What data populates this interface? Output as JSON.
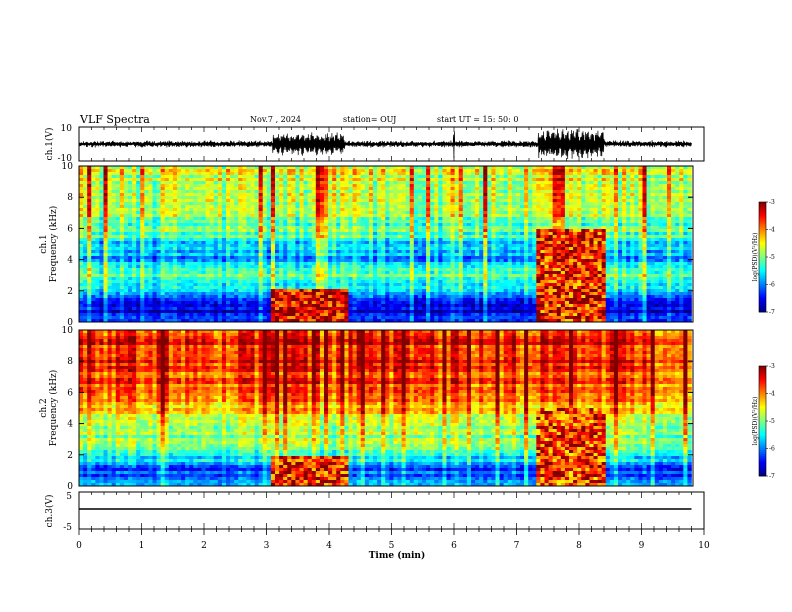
{
  "header": {
    "title": "VLF Spectra",
    "date": "Nov.7 , 2024",
    "station": "station= OUJ",
    "start": "start UT =  15: 50: 0"
  },
  "colors": {
    "spectrum_low": "#00008b",
    "spectrum_mid": "#00ff00",
    "spectrum_high": "#ff0000"
  },
  "chart_data": [
    {
      "type": "line",
      "name": "ch1-waveform",
      "ylabel": "ch.1(V)",
      "ylim": [
        -10,
        10
      ],
      "yticks": [
        "10",
        "-10"
      ],
      "xlim": [
        0,
        10
      ],
      "baseline_amplitude_v": 1.5,
      "bursts": [
        {
          "x_start": 3.1,
          "x_end": 4.25,
          "amplitude_v": 7
        },
        {
          "x_start": 7.35,
          "x_end": 8.4,
          "amplitude_v": 9
        }
      ],
      "spikes": [
        {
          "x": 6.0,
          "amplitude_v": 9
        }
      ]
    },
    {
      "type": "heatmap",
      "name": "ch1-spectrogram",
      "ylabel": "ch.1\nFrequency (kHz)",
      "ylim": [
        0,
        10
      ],
      "yticks": [
        "0",
        "2",
        "4",
        "6",
        "8",
        "10"
      ],
      "xlim": [
        0,
        10
      ],
      "colorbar": {
        "label": "log(PSD)(V²/Hz)",
        "ticks": [
          "-3",
          "-4",
          "-5",
          "-6",
          "-7"
        ],
        "range": [
          -7,
          -3
        ]
      },
      "base_level_by_freq": [
        [
          0,
          -6.0
        ],
        [
          1.0,
          -6.8
        ],
        [
          2.0,
          -5.8
        ],
        [
          3.0,
          -5.2
        ],
        [
          4.0,
          -6.0
        ],
        [
          6.0,
          -5.1
        ],
        [
          8.0,
          -4.8
        ],
        [
          10,
          -4.6
        ]
      ],
      "events": [
        {
          "x_start": 3.1,
          "x_end": 4.3,
          "f_max": 2.2,
          "level": -3.4
        },
        {
          "x_start": 7.35,
          "x_end": 8.4,
          "f_max": 6.0,
          "level": -3.6
        }
      ]
    },
    {
      "type": "heatmap",
      "name": "ch2-spectrogram",
      "ylabel": "ch.2\nFrequency (kHz)",
      "ylim": [
        0,
        10
      ],
      "yticks": [
        "0",
        "2",
        "4",
        "6",
        "8",
        "10"
      ],
      "xlim": [
        0,
        10
      ],
      "colorbar": {
        "label": "log(PSD)(V²/Hz)",
        "ticks": [
          "-3",
          "-4",
          "-5",
          "-6",
          "-7"
        ],
        "range": [
          -7,
          -3
        ]
      },
      "base_level_by_freq": [
        [
          0,
          -5.8
        ],
        [
          1.0,
          -6.2
        ],
        [
          2.0,
          -5.3
        ],
        [
          3.0,
          -5.0
        ],
        [
          4.0,
          -4.6
        ],
        [
          6.0,
          -3.8
        ],
        [
          8.0,
          -3.6
        ],
        [
          10,
          -3.5
        ]
      ],
      "events": [
        {
          "x_start": 3.1,
          "x_end": 4.3,
          "f_max": 2.0,
          "level": -3.6
        },
        {
          "x_start": 7.35,
          "x_end": 8.4,
          "f_max": 5.0,
          "level": -3.7
        }
      ]
    },
    {
      "type": "line",
      "name": "ch3-waveform",
      "ylabel": "ch.3(V)",
      "ylim": [
        -5,
        5
      ],
      "yticks": [
        "5",
        "-5"
      ],
      "xlim": [
        0,
        10
      ],
      "constant_value_v": 0.4
    }
  ],
  "xaxis": {
    "label": "Time (min)",
    "ticks": [
      "0",
      "1",
      "2",
      "3",
      "4",
      "5",
      "6",
      "7",
      "8",
      "9",
      "10"
    ],
    "data_end": 9.8
  }
}
